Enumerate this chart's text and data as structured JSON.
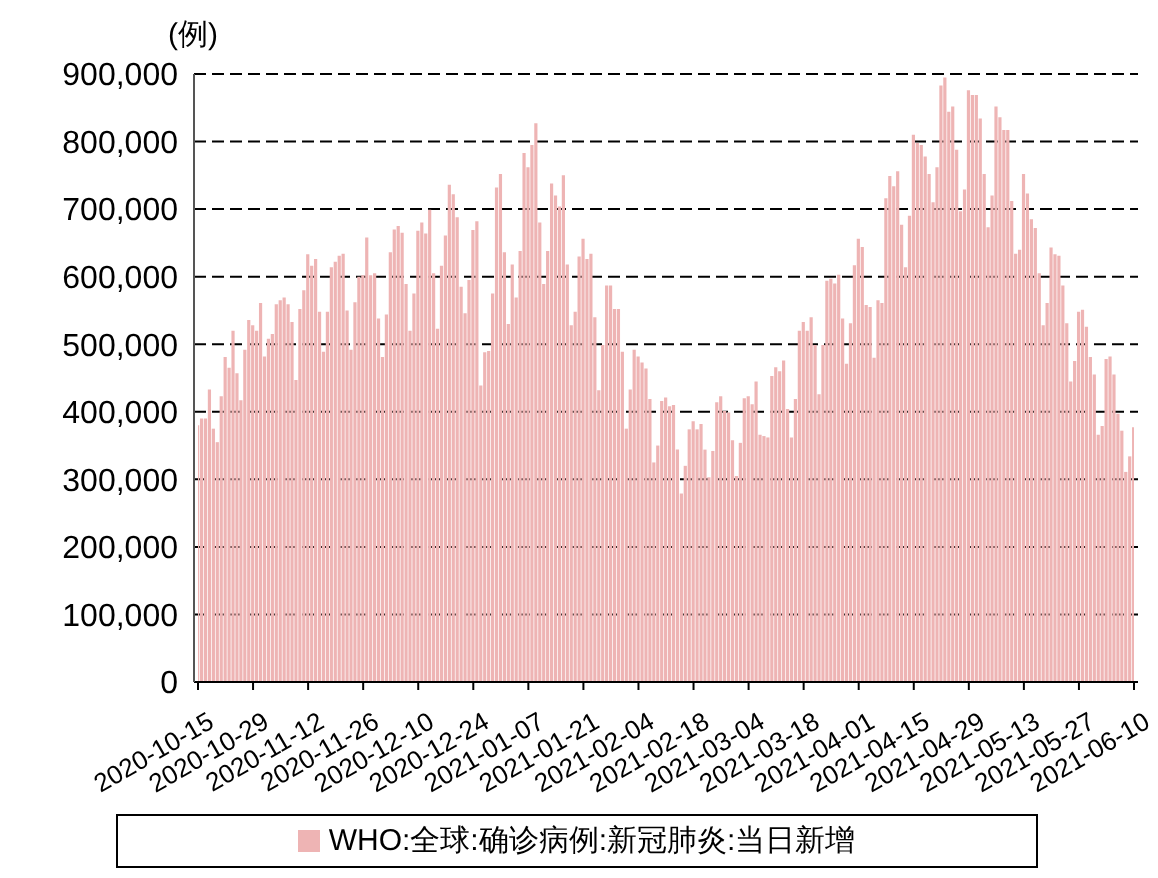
{
  "chart_data": {
    "type": "bar",
    "ylabel": "(例)",
    "x": [
      "2020-10-15",
      "2020-10-16",
      "2020-10-17",
      "2020-10-18",
      "2020-10-19",
      "2020-10-20",
      "2020-10-21",
      "2020-10-22",
      "2020-10-23",
      "2020-10-24",
      "2020-10-25",
      "2020-10-26",
      "2020-10-27",
      "2020-10-28",
      "2020-10-29",
      "2020-10-30",
      "2020-10-31",
      "2020-11-01",
      "2020-11-02",
      "2020-11-03",
      "2020-11-04",
      "2020-11-05",
      "2020-11-06",
      "2020-11-07",
      "2020-11-08",
      "2020-11-09",
      "2020-11-10",
      "2020-11-11",
      "2020-11-12",
      "2020-11-13",
      "2020-11-14",
      "2020-11-15",
      "2020-11-16",
      "2020-11-17",
      "2020-11-18",
      "2020-11-19",
      "2020-11-20",
      "2020-11-21",
      "2020-11-22",
      "2020-11-23",
      "2020-11-24",
      "2020-11-25",
      "2020-11-26",
      "2020-11-27",
      "2020-11-28",
      "2020-11-29",
      "2020-11-30",
      "2020-12-01",
      "2020-12-02",
      "2020-12-03",
      "2020-12-04",
      "2020-12-05",
      "2020-12-06",
      "2020-12-07",
      "2020-12-08",
      "2020-12-09",
      "2020-12-10",
      "2020-12-11",
      "2020-12-12",
      "2020-12-13",
      "2020-12-14",
      "2020-12-15",
      "2020-12-16",
      "2020-12-17",
      "2020-12-18",
      "2020-12-19",
      "2020-12-20",
      "2020-12-21",
      "2020-12-22",
      "2020-12-23",
      "2020-12-24",
      "2020-12-25",
      "2020-12-26",
      "2020-12-27",
      "2020-12-28",
      "2020-12-29",
      "2020-12-30",
      "2020-12-31",
      "2021-01-01",
      "2021-01-02",
      "2021-01-03",
      "2021-01-04",
      "2021-01-05",
      "2021-01-06",
      "2021-01-07",
      "2021-01-08",
      "2021-01-09",
      "2021-01-10",
      "2021-01-11",
      "2021-01-12",
      "2021-01-13",
      "2021-01-14",
      "2021-01-15",
      "2021-01-16",
      "2021-01-17",
      "2021-01-18",
      "2021-01-19",
      "2021-01-20",
      "2021-01-21",
      "2021-01-22",
      "2021-01-23",
      "2021-01-24",
      "2021-01-25",
      "2021-01-26",
      "2021-01-27",
      "2021-01-28",
      "2021-01-29",
      "2021-01-30",
      "2021-01-31",
      "2021-02-01",
      "2021-02-02",
      "2021-02-03",
      "2021-02-04",
      "2021-02-05",
      "2021-02-06",
      "2021-02-07",
      "2021-02-08",
      "2021-02-09",
      "2021-02-10",
      "2021-02-11",
      "2021-02-12",
      "2021-02-13",
      "2021-02-14",
      "2021-02-15",
      "2021-02-16",
      "2021-02-17",
      "2021-02-18",
      "2021-02-19",
      "2021-02-20",
      "2021-02-21",
      "2021-02-22",
      "2021-02-23",
      "2021-02-24",
      "2021-02-25",
      "2021-02-26",
      "2021-02-27",
      "2021-02-28",
      "2021-03-01",
      "2021-03-02",
      "2021-03-03",
      "2021-03-04",
      "2021-03-05",
      "2021-03-06",
      "2021-03-07",
      "2021-03-08",
      "2021-03-09",
      "2021-03-10",
      "2021-03-11",
      "2021-03-12",
      "2021-03-13",
      "2021-03-14",
      "2021-03-15",
      "2021-03-16",
      "2021-03-17",
      "2021-03-18",
      "2021-03-19",
      "2021-03-20",
      "2021-03-21",
      "2021-03-22",
      "2021-03-23",
      "2021-03-24",
      "2021-03-25",
      "2021-03-26",
      "2021-03-27",
      "2021-03-28",
      "2021-03-29",
      "2021-03-30",
      "2021-03-31",
      "2021-04-01",
      "2021-04-02",
      "2021-04-03",
      "2021-04-04",
      "2021-04-05",
      "2021-04-06",
      "2021-04-07",
      "2021-04-08",
      "2021-04-09",
      "2021-04-10",
      "2021-04-11",
      "2021-04-12",
      "2021-04-13",
      "2021-04-14",
      "2021-04-15",
      "2021-04-16",
      "2021-04-17",
      "2021-04-18",
      "2021-04-19",
      "2021-04-20",
      "2021-04-21",
      "2021-04-22",
      "2021-04-23",
      "2021-04-24",
      "2021-04-25",
      "2021-04-26",
      "2021-04-27",
      "2021-04-28",
      "2021-04-29",
      "2021-04-30",
      "2021-05-01",
      "2021-05-02",
      "2021-05-03",
      "2021-05-04",
      "2021-05-05",
      "2021-05-06",
      "2021-05-07",
      "2021-05-08",
      "2021-05-09",
      "2021-05-10",
      "2021-05-11",
      "2021-05-12",
      "2021-05-13",
      "2021-05-14",
      "2021-05-15",
      "2021-05-16",
      "2021-05-17",
      "2021-05-18",
      "2021-05-19",
      "2021-05-20",
      "2021-05-21",
      "2021-05-22",
      "2021-05-23",
      "2021-05-24",
      "2021-05-25",
      "2021-05-26",
      "2021-05-27",
      "2021-05-28",
      "2021-05-29",
      "2021-05-30",
      "2021-05-31",
      "2021-06-01",
      "2021-06-02",
      "2021-06-03",
      "2021-06-04",
      "2021-06-05",
      "2021-06-06",
      "2021-06-07",
      "2021-06-08",
      "2021-06-09",
      "2021-06-10"
    ],
    "series": [
      {
        "name": "WHO:全球:确诊病例:新冠肺炎:当日新增",
        "color": "#eeb4b4",
        "values": [
          380000,
          390000,
          390000,
          433000,
          375000,
          355000,
          423000,
          481000,
          465000,
          520000,
          457000,
          417000,
          492000,
          536000,
          528000,
          520000,
          561000,
          482000,
          508000,
          515000,
          559000,
          565000,
          569000,
          559000,
          533000,
          447000,
          552000,
          580000,
          633000,
          616000,
          626000,
          548000,
          489000,
          548000,
          614000,
          622000,
          631000,
          634000,
          550000,
          492000,
          562000,
          600000,
          602000,
          658000,
          602000,
          605000,
          538000,
          481000,
          544000,
          636000,
          670000,
          675000,
          665000,
          589000,
          520000,
          575000,
          668000,
          680000,
          664000,
          699000,
          605000,
          523000,
          616000,
          661000,
          736000,
          722000,
          688000,
          585000,
          546000,
          595000,
          669000,
          682000,
          439000,
          488000,
          490000,
          575000,
          732000,
          752000,
          636000,
          530000,
          618000,
          569000,
          638000,
          783000,
          762000,
          795000,
          827000,
          680000,
          589000,
          638000,
          738000,
          720000,
          704000,
          750000,
          618000,
          528000,
          548000,
          630000,
          656000,
          626000,
          634000,
          540000,
          432000,
          499000,
          587000,
          587000,
          552000,
          552000,
          489000,
          375000,
          433000,
          492000,
          482000,
          473000,
          464000,
          419000,
          325000,
          350000,
          416000,
          421000,
          408000,
          410000,
          344000,
          279000,
          320000,
          374000,
          386000,
          374000,
          382000,
          344000,
          303000,
          342000,
          414000,
          423000,
          401000,
          399000,
          358000,
          305000,
          354000,
          420000,
          423000,
          411000,
          445000,
          366000,
          364000,
          362000,
          453000,
          466000,
          460000,
          476000,
          404000,
          362000,
          419000,
          520000,
          533000,
          520000,
          540000,
          499000,
          426000,
          499000,
          594000,
          597000,
          590000,
          603000,
          538000,
          471000,
          531000,
          617000,
          656000,
          644000,
          558000,
          555000,
          480000,
          565000,
          561000,
          716000,
          749000,
          734000,
          756000,
          677000,
          614000,
          690000,
          810000,
          798000,
          795000,
          778000,
          752000,
          710000,
          762000,
          883000,
          895000,
          844000,
          852000,
          788000,
          697000,
          729000,
          876000,
          869000,
          869000,
          834000,
          752000,
          673000,
          720000,
          852000,
          836000,
          817000,
          817000,
          712000,
          634000,
          640000,
          752000,
          723000,
          685000,
          672000,
          605000,
          528000,
          561000,
          643000,
          633000,
          631000,
          587000,
          531000,
          445000,
          475000,
          548000,
          551000,
          526000,
          481000,
          455000,
          366000,
          379000,
          478000,
          482000,
          455000,
          397000,
          372000,
          311000,
          334000,
          377000
        ]
      }
    ],
    "xlim": [
      "2020-10-15",
      "2021-06-10"
    ],
    "xticks": [
      "2020-10-15",
      "2020-10-29",
      "2020-11-12",
      "2020-11-26",
      "2020-12-10",
      "2020-12-24",
      "2021-01-07",
      "2021-01-21",
      "2021-02-04",
      "2021-02-18",
      "2021-03-04",
      "2021-03-18",
      "2021-04-01",
      "2021-04-15",
      "2021-04-29",
      "2021-05-13",
      "2021-05-27",
      "2021-06-10"
    ],
    "ylim": [
      0,
      900000
    ],
    "yticks": [
      0,
      {
        "value": 100000,
        "label": "100,000"
      },
      {
        "value": 200000,
        "label": "200,000"
      },
      {
        "value": 300000,
        "label": "300,000"
      },
      {
        "value": 400000,
        "label": "400,000"
      },
      {
        "value": 500000,
        "label": "500,000"
      },
      {
        "value": 600000,
        "label": "600,000"
      },
      {
        "value": 700000,
        "label": "700,000"
      },
      {
        "value": 800000,
        "label": "800,000"
      },
      {
        "value": 900000,
        "label": "900,000"
      }
    ],
    "grid": "y",
    "legend": "bottom"
  }
}
